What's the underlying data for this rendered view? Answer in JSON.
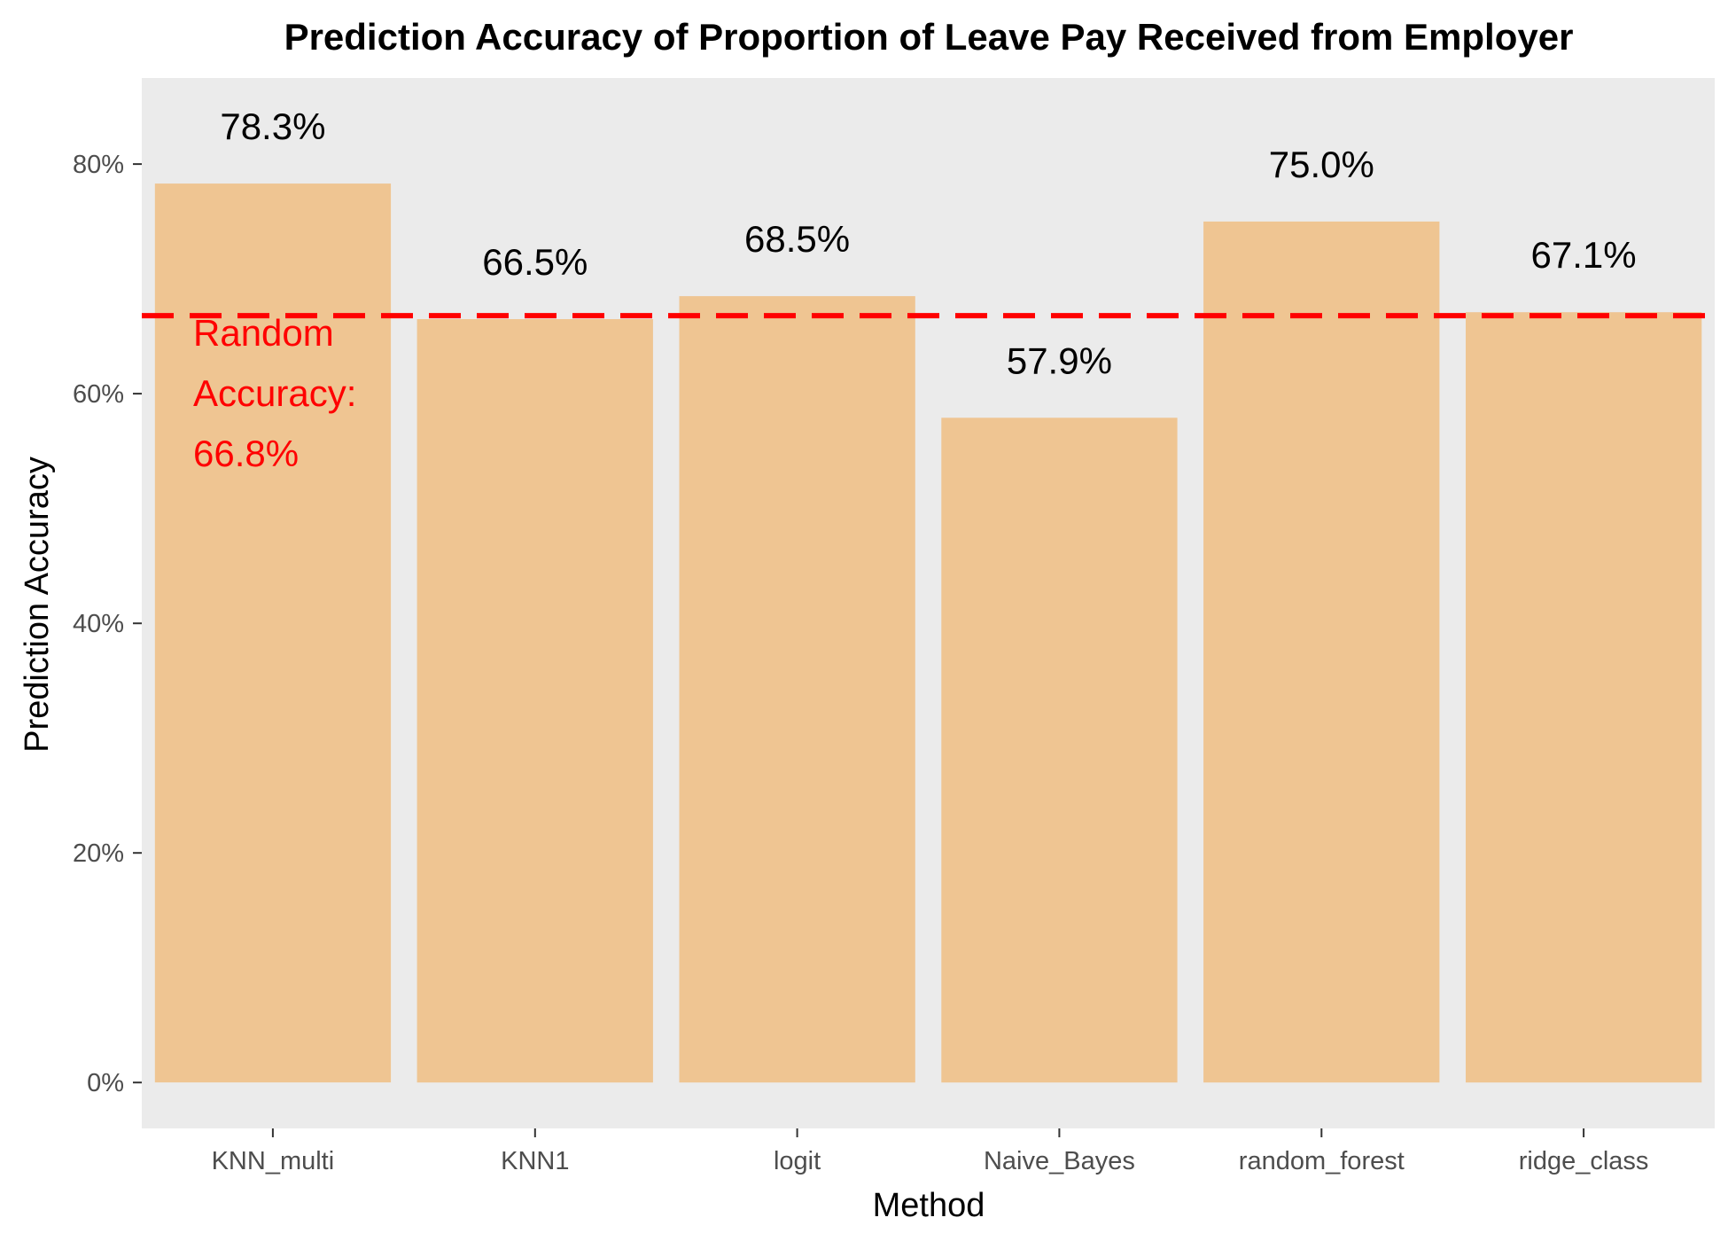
{
  "chart_data": {
    "type": "bar",
    "title": "Prediction Accuracy of Proportion of Leave Pay Received from Employer",
    "xlabel": "Method",
    "ylabel": "Prediction Accuracy",
    "categories": [
      "KNN_multi",
      "KNN1",
      "logit",
      "Naive_Bayes",
      "random_forest",
      "ridge_class"
    ],
    "values": [
      78.3,
      66.5,
      68.5,
      57.9,
      75.0,
      67.1
    ],
    "data_labels": [
      "78.3%",
      "66.5%",
      "68.5%",
      "57.9%",
      "75.0%",
      "67.1%"
    ],
    "ylim": [
      -4,
      87.5
    ],
    "yticks": [
      0,
      20,
      40,
      60,
      80
    ],
    "ytick_labels": [
      "0%",
      "20%",
      "40%",
      "60%",
      "80%"
    ],
    "reference_line": {
      "value": 66.8,
      "style": "dashed",
      "label_lines": [
        "Random",
        "Accuracy:",
        "66.8%"
      ]
    },
    "grid": false,
    "legend": "none",
    "colors": {
      "bar": "#EFC592",
      "panel": "#EBEBEB",
      "reference": "#FF0000",
      "tick": "#333333"
    }
  }
}
